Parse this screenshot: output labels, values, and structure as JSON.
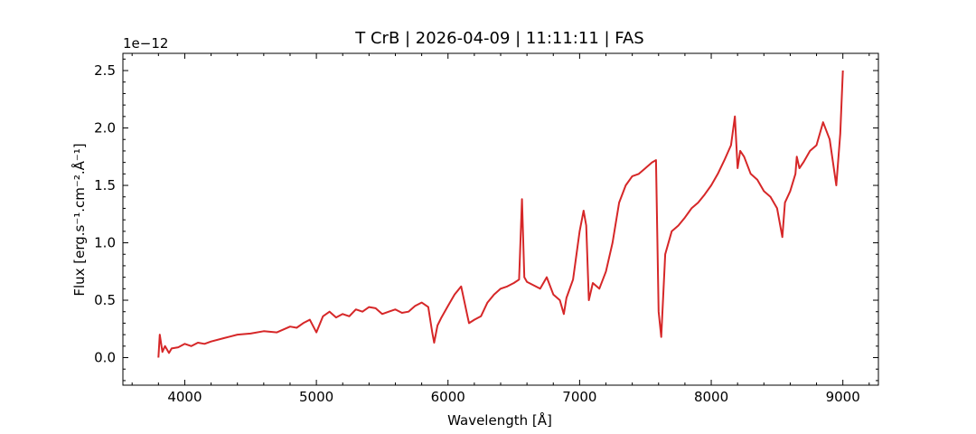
{
  "chart_data": {
    "type": "line",
    "title": "T CrB | 2026-04-09 | 11:11:11 | FAS",
    "xlabel": "Wavelength [Å]",
    "ylabel": "Flux [erg.s⁻¹.cm⁻².Å⁻¹]",
    "y_offset_label": "1e−12",
    "xlim": [
      3530,
      9270
    ],
    "ylim": [
      -0.24,
      2.65
    ],
    "y_scale_factor": 1e-12,
    "x_ticks": [
      4000,
      5000,
      6000,
      7000,
      8000,
      9000
    ],
    "x_tick_labels": [
      "4000",
      "5000",
      "6000",
      "7000",
      "8000",
      "9000"
    ],
    "y_ticks": [
      0.0,
      0.5,
      1.0,
      1.5,
      2.0,
      2.5
    ],
    "y_tick_labels": [
      "0.0",
      "0.5",
      "1.0",
      "1.5",
      "2.0",
      "2.5"
    ],
    "x_minor_step": 200,
    "y_minor_step": 0.1,
    "grid": false,
    "series_color": "#d62728",
    "series": [
      {
        "x": [
          3800,
          3810,
          3830,
          3850,
          3880,
          3900,
          3950,
          4000,
          4050,
          4100,
          4150,
          4200,
          4300,
          4400,
          4500,
          4600,
          4700,
          4800,
          4850,
          4900,
          4950,
          5000,
          5050,
          5100,
          5150,
          5200,
          5250,
          5300,
          5350,
          5400,
          5450,
          5500,
          5550,
          5600,
          5650,
          5700,
          5750,
          5800,
          5850,
          5880,
          5895,
          5920,
          5950,
          6000,
          6050,
          6100,
          6150,
          6160,
          6200,
          6250,
          6300,
          6350,
          6400,
          6450,
          6500,
          6540,
          6562,
          6580,
          6600,
          6650,
          6700,
          6750,
          6800,
          6850,
          6880,
          6900,
          6950,
          7000,
          7030,
          7050,
          7070,
          7100,
          7150,
          7200,
          7250,
          7300,
          7350,
          7400,
          7450,
          7500,
          7550,
          7580,
          7600,
          7620,
          7650,
          7700,
          7750,
          7800,
          7850,
          7900,
          7950,
          8000,
          8050,
          8100,
          8150,
          8180,
          8200,
          8220,
          8250,
          8300,
          8350,
          8400,
          8450,
          8500,
          8540,
          8560,
          8600,
          8640,
          8650,
          8670,
          8700,
          8750,
          8800,
          8850,
          8900,
          8950,
          8980,
          9000
        ],
        "y": [
          0.0,
          0.2,
          0.05,
          0.1,
          0.04,
          0.08,
          0.09,
          0.12,
          0.1,
          0.13,
          0.12,
          0.14,
          0.17,
          0.2,
          0.21,
          0.23,
          0.22,
          0.27,
          0.26,
          0.3,
          0.33,
          0.22,
          0.36,
          0.4,
          0.35,
          0.38,
          0.36,
          0.42,
          0.4,
          0.44,
          0.43,
          0.38,
          0.4,
          0.42,
          0.39,
          0.4,
          0.45,
          0.48,
          0.44,
          0.22,
          0.13,
          0.28,
          0.35,
          0.45,
          0.55,
          0.62,
          0.35,
          0.3,
          0.33,
          0.36,
          0.48,
          0.55,
          0.6,
          0.62,
          0.65,
          0.68,
          1.38,
          0.7,
          0.66,
          0.63,
          0.6,
          0.7,
          0.55,
          0.5,
          0.38,
          0.52,
          0.68,
          1.1,
          1.28,
          1.15,
          0.5,
          0.65,
          0.6,
          0.75,
          1.0,
          1.35,
          1.5,
          1.58,
          1.6,
          1.65,
          1.7,
          1.72,
          0.4,
          0.18,
          0.9,
          1.1,
          1.15,
          1.22,
          1.3,
          1.35,
          1.42,
          1.5,
          1.6,
          1.72,
          1.85,
          2.1,
          1.65,
          1.8,
          1.75,
          1.6,
          1.55,
          1.45,
          1.4,
          1.3,
          1.05,
          1.35,
          1.45,
          1.6,
          1.75,
          1.65,
          1.7,
          1.8,
          1.85,
          2.05,
          1.9,
          1.5,
          1.95,
          2.5
        ]
      }
    ]
  }
}
